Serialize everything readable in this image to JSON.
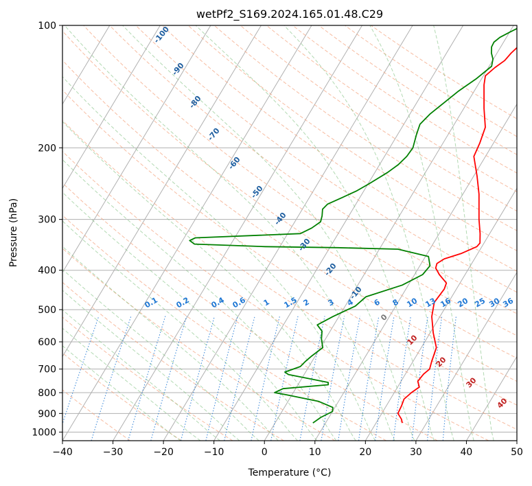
{
  "chart_data": {
    "type": "line",
    "title": "wetPf2_S169.2024.165.01.48.C29",
    "xlabel": "Temperature (°C)",
    "ylabel": "Pressure (hPa)",
    "xlim": [
      -40,
      50
    ],
    "ylim": [
      1050,
      100
    ],
    "y_scale": "log",
    "grid": true,
    "x_ticks": [
      -40,
      -30,
      -20,
      -10,
      0,
      10,
      20,
      30,
      40,
      50
    ],
    "y_ticks": [
      100,
      200,
      300,
      400,
      500,
      600,
      700,
      800,
      900,
      1000
    ],
    "series": [
      {
        "color": "#ff0000",
        "points": [
          [
            25.2,
            950
          ],
          [
            24.6,
            930
          ],
          [
            23.2,
            900
          ],
          [
            23.0,
            860
          ],
          [
            22.7,
            830
          ],
          [
            23.4,
            800
          ],
          [
            24.3,
            775
          ],
          [
            23.3,
            750
          ],
          [
            23.6,
            720
          ],
          [
            24.2,
            700
          ],
          [
            23.7,
            670
          ],
          [
            23.0,
            620
          ],
          [
            20.6,
            570
          ],
          [
            18.4,
            520
          ],
          [
            17.2,
            480
          ],
          [
            17.6,
            445
          ],
          [
            17.3,
            430
          ],
          [
            14.9,
            410
          ],
          [
            13.4,
            395
          ],
          [
            13.1,
            385
          ],
          [
            14.0,
            375
          ],
          [
            16.7,
            364
          ],
          [
            19.0,
            350
          ],
          [
            19.2,
            343
          ],
          [
            18.1,
            325
          ],
          [
            16.2,
            300
          ],
          [
            13.2,
            260
          ],
          [
            10.7,
            235
          ],
          [
            7.7,
            210
          ],
          [
            7.3,
            195
          ],
          [
            6.5,
            178
          ],
          [
            4.0,
            160
          ],
          [
            1.2,
            140
          ],
          [
            0.4,
            133
          ],
          [
            1.3,
            127
          ],
          [
            2.4,
            122
          ],
          [
            2.8,
            117
          ],
          [
            3.8,
            110
          ],
          [
            4.2,
            105
          ],
          [
            4.7,
            100
          ]
        ]
      },
      {
        "color": "#008000",
        "points": [
          [
            7.5,
            950
          ],
          [
            8.4,
            920
          ],
          [
            10.0,
            890
          ],
          [
            9.6,
            870
          ],
          [
            6.0,
            840
          ],
          [
            -1.0,
            810
          ],
          [
            -3.7,
            800
          ],
          [
            -2.5,
            782
          ],
          [
            6.0,
            765
          ],
          [
            5.7,
            755
          ],
          [
            -3.1,
            722
          ],
          [
            -4.1,
            712
          ],
          [
            -1.7,
            690
          ],
          [
            -1.3,
            670
          ],
          [
            -0.7,
            650
          ],
          [
            0.5,
            620
          ],
          [
            -0.8,
            590
          ],
          [
            -1.6,
            565
          ],
          [
            -3.3,
            545
          ],
          [
            -1.2,
            520
          ],
          [
            2.0,
            490
          ],
          [
            3.0,
            465
          ],
          [
            8.8,
            435
          ],
          [
            11.6,
            410
          ],
          [
            12.0,
            390
          ],
          [
            10.6,
            370
          ],
          [
            3.7,
            355
          ],
          [
            -8.4,
            352
          ],
          [
            -22.9,
            350
          ],
          [
            -37.2,
            345
          ],
          [
            -38.6,
            338
          ],
          [
            -37.8,
            333
          ],
          [
            -17.5,
            325
          ],
          [
            -15.9,
            315
          ],
          [
            -14.9,
            304
          ],
          [
            -15.3,
            294
          ],
          [
            -16.0,
            283
          ],
          [
            -15.6,
            275
          ],
          [
            -13.5,
            265
          ],
          [
            -11.4,
            255
          ],
          [
            -9.8,
            245
          ],
          [
            -7.5,
            230
          ],
          [
            -6.3,
            220
          ],
          [
            -5.6,
            210
          ],
          [
            -5.4,
            200
          ],
          [
            -6.3,
            185
          ],
          [
            -6.8,
            175
          ],
          [
            -6.0,
            165
          ],
          [
            -4.6,
            155
          ],
          [
            -3.1,
            145
          ],
          [
            -1.0,
            135
          ],
          [
            0.5,
            126
          ],
          [
            -0.1,
            121
          ],
          [
            -1.1,
            117
          ],
          [
            -1.8,
            113
          ],
          [
            -1.9,
            110
          ],
          [
            -1.3,
            107
          ],
          [
            0.0,
            104
          ],
          [
            1.4,
            101
          ],
          [
            1.7,
            100
          ]
        ]
      }
    ],
    "dry_adiabat_labels": [
      "-100",
      "-90",
      "-80",
      "-70",
      "-60",
      "-50",
      "-40",
      "-30",
      "-20",
      "-10"
    ],
    "mixing_ratio_labels": [
      "0.1",
      "0.2",
      "0.4",
      "0.6",
      "1",
      "1.5",
      "2",
      "3",
      "4",
      "6",
      "8",
      "10",
      "13",
      "16",
      "20",
      "25",
      "30",
      "36"
    ],
    "moist_adiabat_labels": [
      "0",
      "10",
      "20",
      "30",
      "40"
    ]
  }
}
